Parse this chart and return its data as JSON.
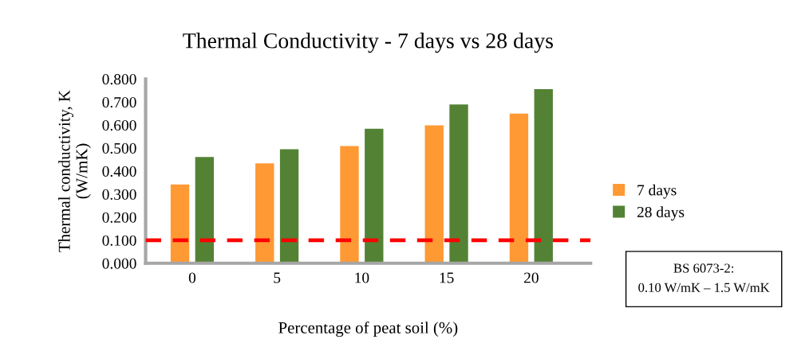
{
  "chart_data": {
    "type": "bar",
    "title": "Thermal Conductivity - 7 days vs 28 days",
    "xlabel": "Percentage of peat soil (%)",
    "ylabel": "Thermal conductivity, K\n(W/mK)",
    "categories": [
      "0",
      "5",
      "10",
      "15",
      "20"
    ],
    "series": [
      {
        "name": "7 days",
        "color": "#ff9933",
        "values": [
          0.342,
          0.434,
          0.509,
          0.599,
          0.65
        ]
      },
      {
        "name": "28 days",
        "color": "#548235",
        "values": [
          0.461,
          0.495,
          0.584,
          0.689,
          0.756
        ]
      }
    ],
    "ylim": [
      0,
      0.8
    ],
    "yticks": [
      {
        "value": 0,
        "label": "0.000"
      },
      {
        "value": 0.1,
        "label": "0.100"
      },
      {
        "value": 0.2,
        "label": "0.200"
      },
      {
        "value": 0.3,
        "label": "0.300"
      },
      {
        "value": 0.4,
        "label": "0.400"
      },
      {
        "value": 0.5,
        "label": "0.500"
      },
      {
        "value": 0.6,
        "label": "0.600"
      },
      {
        "value": 0.7,
        "label": "0.700"
      },
      {
        "value": 0.8,
        "label": "0.800"
      }
    ],
    "ref_lines": [
      {
        "axis": "y",
        "value": 0.1,
        "color": "#ff0000",
        "line_style": "dashed"
      }
    ],
    "annotations": [
      "BS 6073-2:\n0.10 W/mK – 1.5 W/mK"
    ],
    "legend": "right",
    "grid": false
  }
}
